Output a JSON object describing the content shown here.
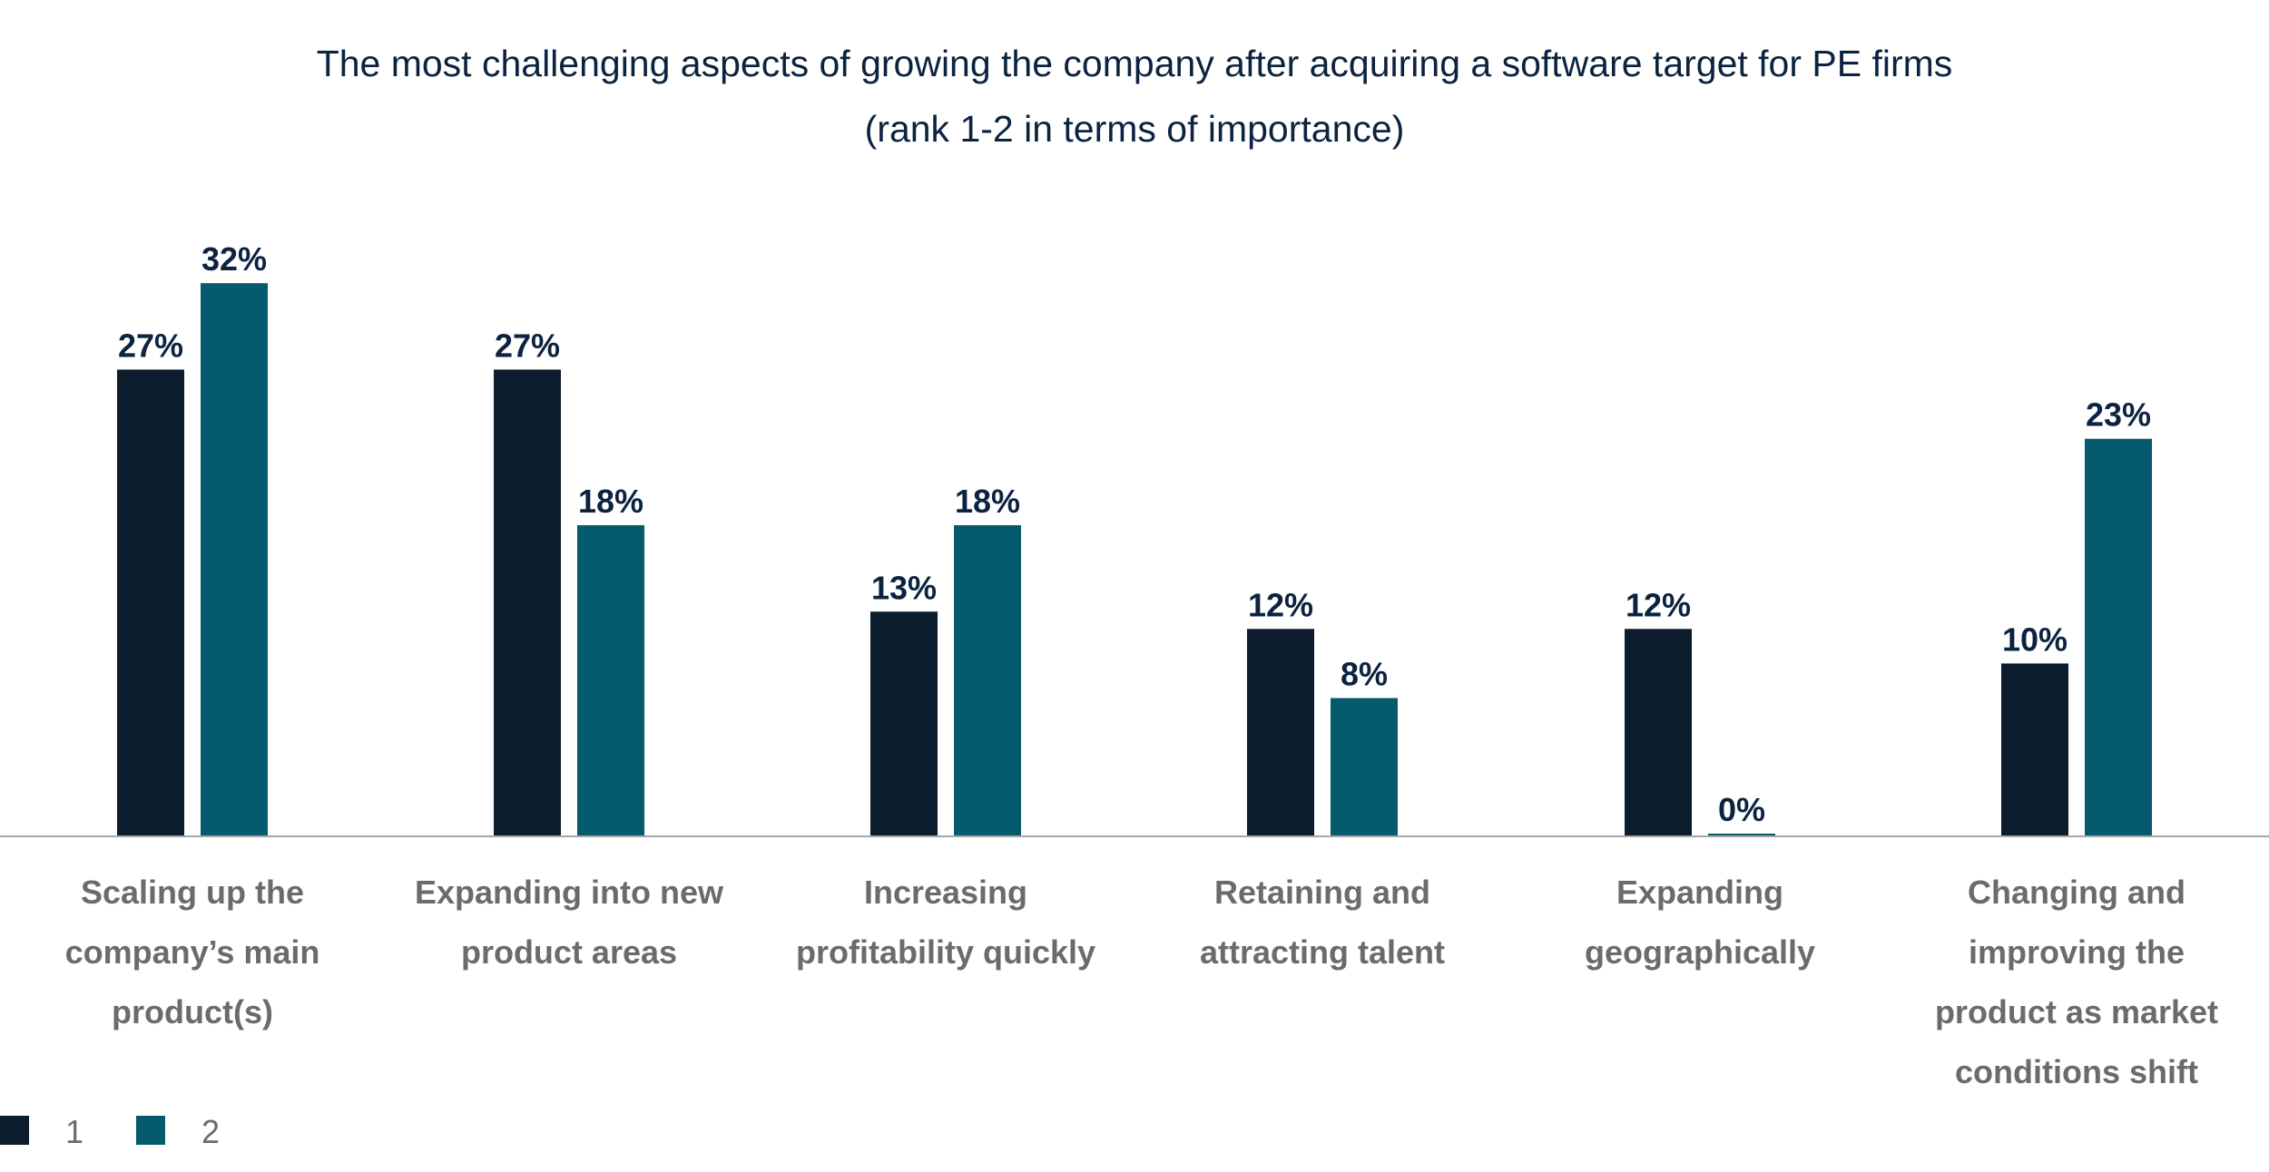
{
  "chart_data": {
    "type": "bar",
    "title_lines": [
      "The most challenging aspects of growing the company after acquiring a software target for PE firms",
      "(rank 1-2 in terms of importance)"
    ],
    "categories": [
      [
        "Scaling up the",
        "company’s main",
        "product(s)"
      ],
      [
        "Expanding into new",
        "product areas"
      ],
      [
        "Increasing",
        "profitability quickly"
      ],
      [
        "Retaining and",
        "attracting talent"
      ],
      [
        "Expanding",
        "geographically"
      ],
      [
        "Changing and",
        "improving the",
        "product as market",
        "conditions shift"
      ]
    ],
    "series": [
      {
        "name": "1",
        "color": "#0b1c2c",
        "values": [
          27,
          27,
          13,
          12,
          12,
          10
        ],
        "labels": [
          "27%",
          "27%",
          "13%",
          "12%",
          "12%",
          "10%"
        ]
      },
      {
        "name": "2",
        "color": "#055a6e",
        "values": [
          32,
          18,
          18,
          8,
          0,
          23
        ],
        "labels": [
          "32%",
          "18%",
          "18%",
          "8%",
          "0%",
          "23%"
        ]
      }
    ],
    "ylim": [
      0,
      35
    ],
    "grid": false,
    "legend": "bottom-left",
    "axis_color": "#a6a6a6"
  }
}
